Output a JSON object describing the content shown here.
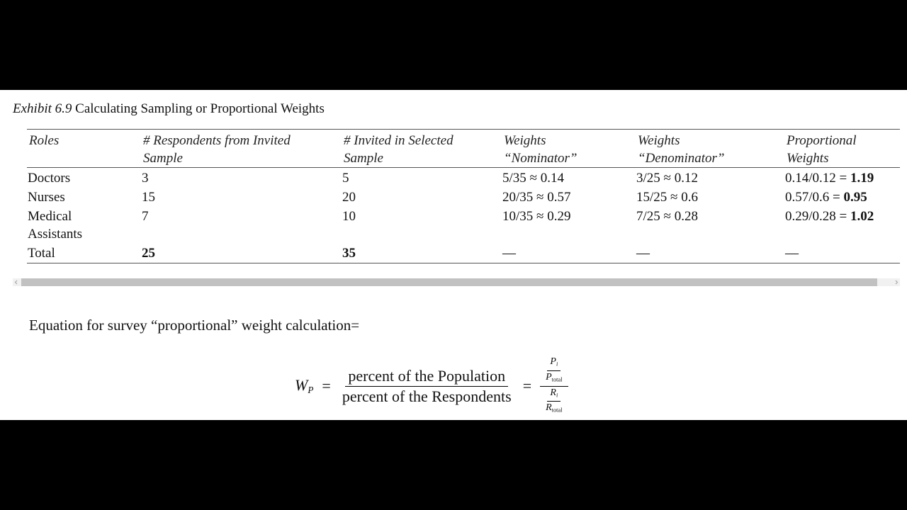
{
  "caption": {
    "label": "Exhibit 6.9",
    "text": "Calculating Sampling or Proportional Weights"
  },
  "table": {
    "headers": [
      "Roles",
      "# Respondents from Invited Sample",
      "# Invited in Selected Sample",
      "Weights “Nominator”",
      "Weights “Denominator”",
      "Proportional Weights"
    ],
    "rows": [
      [
        "Doctors",
        "3",
        "5",
        "5/35 ≈ 0.14",
        "3/25 ≈ 0.12",
        {
          "expression": "0.14/0.12 =",
          "result": "1.19"
        }
      ],
      [
        "Nurses",
        "15",
        "20",
        "20/35 ≈ 0.57",
        "15/25 ≈ 0.6",
        {
          "expression": "0.57/0.6 =",
          "result": "0.95"
        }
      ],
      [
        "Medical Assistants",
        "7",
        "10",
        "10/35 ≈ 0.29",
        "7/25 ≈ 0.28",
        {
          "expression": "0.29/0.28 =",
          "result": "1.02"
        }
      ],
      [
        "Total",
        "25",
        "35",
        "—",
        "—",
        "—"
      ]
    ]
  },
  "equation": {
    "intro": "Equation for survey “proportional” weight calculation=",
    "lhs": "W",
    "lhs_sub": "P",
    "equals": "=",
    "numerator": "percent of the Population",
    "denominator": "percent of the Respondents",
    "equals2": "=",
    "p": "P",
    "p_sub": "i",
    "p_total": "P",
    "p_total_sub": "total",
    "r": "R",
    "r_sub": "i",
    "r_total": "R",
    "r_total_sub": "total"
  }
}
